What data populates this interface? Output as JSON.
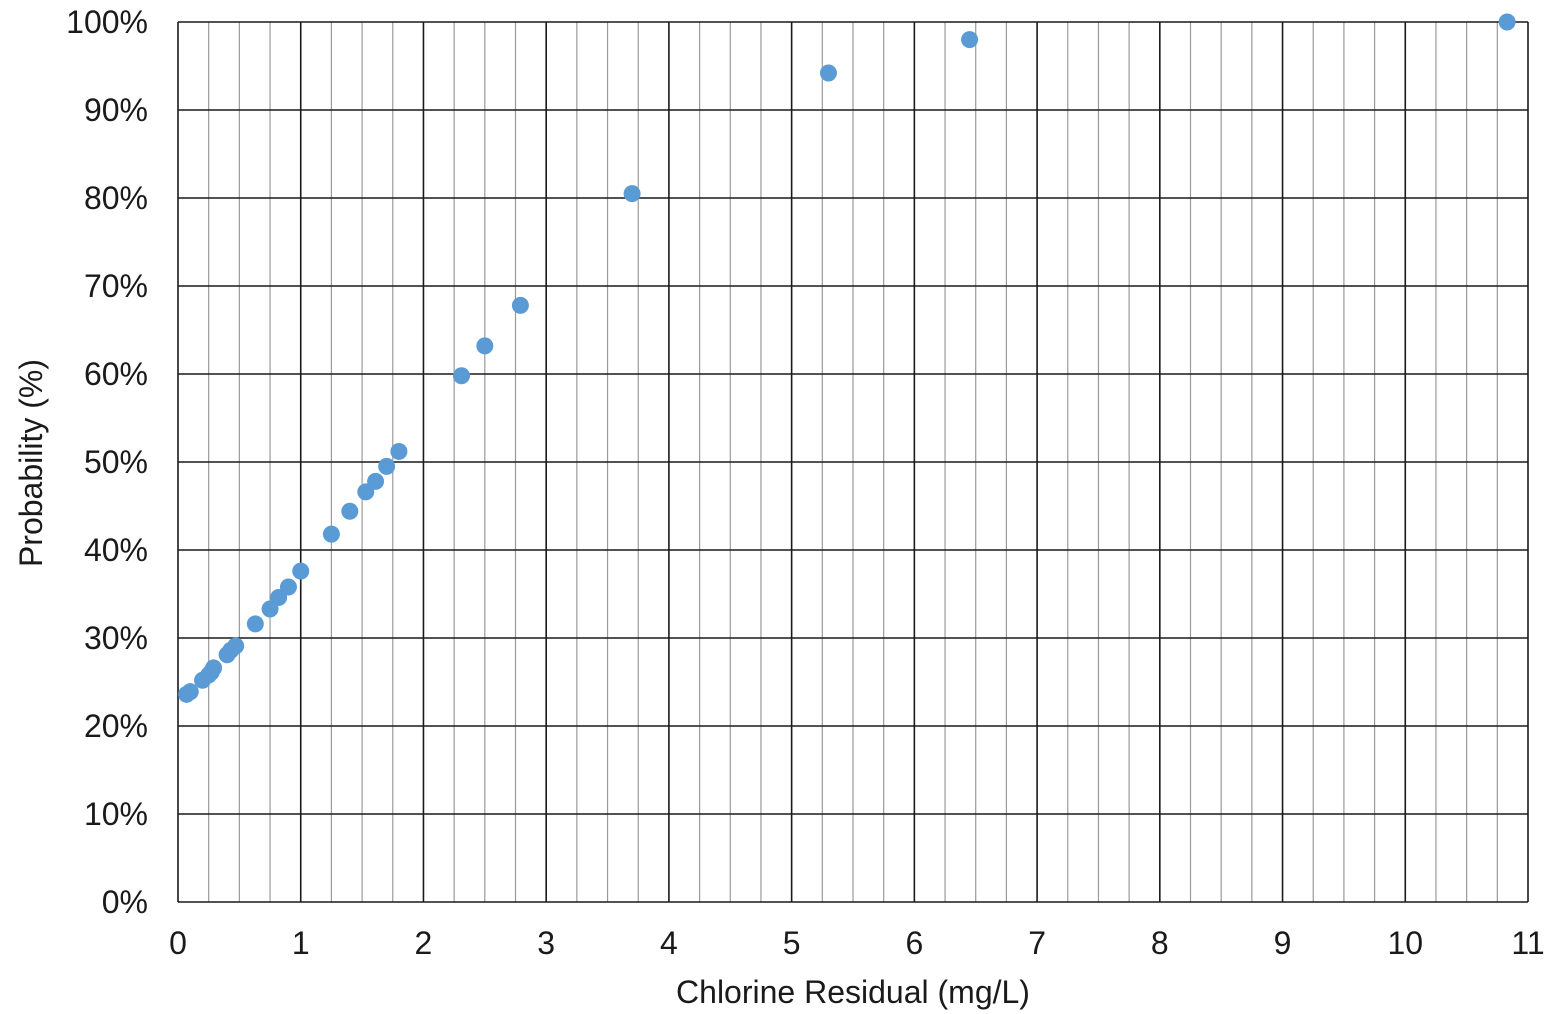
{
  "chart_data": {
    "type": "scatter",
    "title": "",
    "xlabel": "Chlorine Residual (mg/L)",
    "ylabel": "Probability (%)",
    "xlim": [
      0,
      11
    ],
    "ylim": [
      0,
      100
    ],
    "x_ticks": [
      "0",
      "1",
      "2",
      "3",
      "4",
      "5",
      "6",
      "7",
      "8",
      "9",
      "10",
      "11"
    ],
    "y_ticks": [
      "0%",
      "10%",
      "20%",
      "30%",
      "40%",
      "50%",
      "60%",
      "70%",
      "80%",
      "90%",
      "100%"
    ],
    "grid": true,
    "legend": "none",
    "colors": {
      "marker": "#5b9bd5",
      "major_grid": "#1a1a1a",
      "minor_grid": "#9a9a9a"
    },
    "series": [
      {
        "points": [
          {
            "x": 0.07,
            "y": 23.6
          },
          {
            "x": 0.1,
            "y": 23.9
          },
          {
            "x": 0.2,
            "y": 25.2
          },
          {
            "x": 0.25,
            "y": 25.8
          },
          {
            "x": 0.27,
            "y": 26.1
          },
          {
            "x": 0.29,
            "y": 26.6
          },
          {
            "x": 0.4,
            "y": 28.1
          },
          {
            "x": 0.43,
            "y": 28.6
          },
          {
            "x": 0.47,
            "y": 29.1
          },
          {
            "x": 0.63,
            "y": 31.6
          },
          {
            "x": 0.75,
            "y": 33.3
          },
          {
            "x": 0.82,
            "y": 34.6
          },
          {
            "x": 0.9,
            "y": 35.8
          },
          {
            "x": 1.0,
            "y": 37.6
          },
          {
            "x": 1.25,
            "y": 41.8
          },
          {
            "x": 1.4,
            "y": 44.4
          },
          {
            "x": 1.53,
            "y": 46.6
          },
          {
            "x": 1.61,
            "y": 47.8
          },
          {
            "x": 1.7,
            "y": 49.5
          },
          {
            "x": 1.8,
            "y": 51.2
          },
          {
            "x": 2.31,
            "y": 59.8
          },
          {
            "x": 2.5,
            "y": 63.2
          },
          {
            "x": 2.79,
            "y": 67.8
          },
          {
            "x": 3.7,
            "y": 80.5
          },
          {
            "x": 5.3,
            "y": 94.2
          },
          {
            "x": 6.45,
            "y": 98.0
          },
          {
            "x": 10.83,
            "y": 100.0
          }
        ]
      }
    ]
  }
}
